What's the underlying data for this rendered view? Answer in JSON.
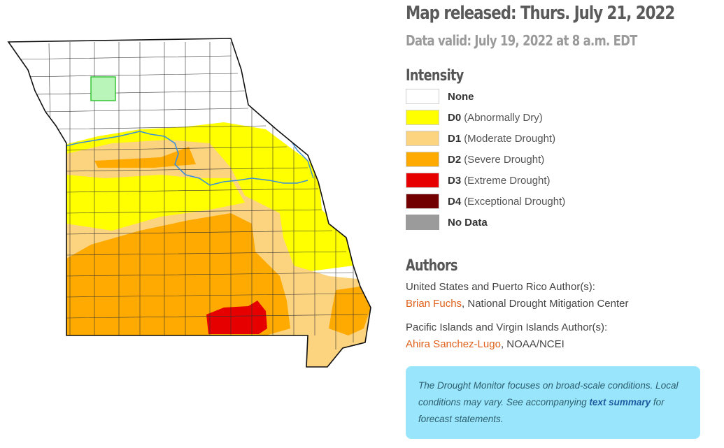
{
  "header": {
    "map_released": "Map released: Thurs. July 21, 2022",
    "data_valid": "Data valid: July 19, 2022 at 8 a.m. EDT"
  },
  "legend": {
    "heading": "Intensity",
    "items": [
      {
        "code": "None",
        "desc": "",
        "color": "#ffffff"
      },
      {
        "code": "D0",
        "desc": "(Abnormally Dry)",
        "color": "#ffff00"
      },
      {
        "code": "D1",
        "desc": "(Moderate Drought)",
        "color": "#fcd37f"
      },
      {
        "code": "D2",
        "desc": "(Severe Drought)",
        "color": "#ffaa00"
      },
      {
        "code": "D3",
        "desc": "(Extreme Drought)",
        "color": "#e60000"
      },
      {
        "code": "D4",
        "desc": "(Exceptional Drought)",
        "color": "#730000"
      },
      {
        "code": "No Data",
        "desc": "",
        "color": "#9b9b9b"
      }
    ]
  },
  "authors": {
    "heading": "Authors",
    "us_label": "United States and Puerto Rico Author(s):",
    "us_author_name": "Brian Fuchs",
    "us_author_org": ", National Drought Mitigation Center",
    "pacific_label": "Pacific Islands and Virgin Islands Author(s):",
    "pacific_author_name": "Ahira Sanchez-Lugo",
    "pacific_author_org": ", NOAA/NCEI"
  },
  "note": {
    "text_before": "The Drought Monitor focuses on broad-scale conditions. Local conditions may vary. See accompanying ",
    "link_text": "text summary",
    "text_after": " for forecast statements."
  },
  "map": {
    "state": "Missouri",
    "colors": {
      "none": "#ffffff",
      "d0": "#ffff00",
      "d1": "#fcd37f",
      "d2": "#ffaa00",
      "d3": "#e60000",
      "river": "#3a8fd6",
      "county_border": "#333333",
      "highlight_county": "#b9f5b9",
      "highlight_border": "#35c535"
    }
  }
}
